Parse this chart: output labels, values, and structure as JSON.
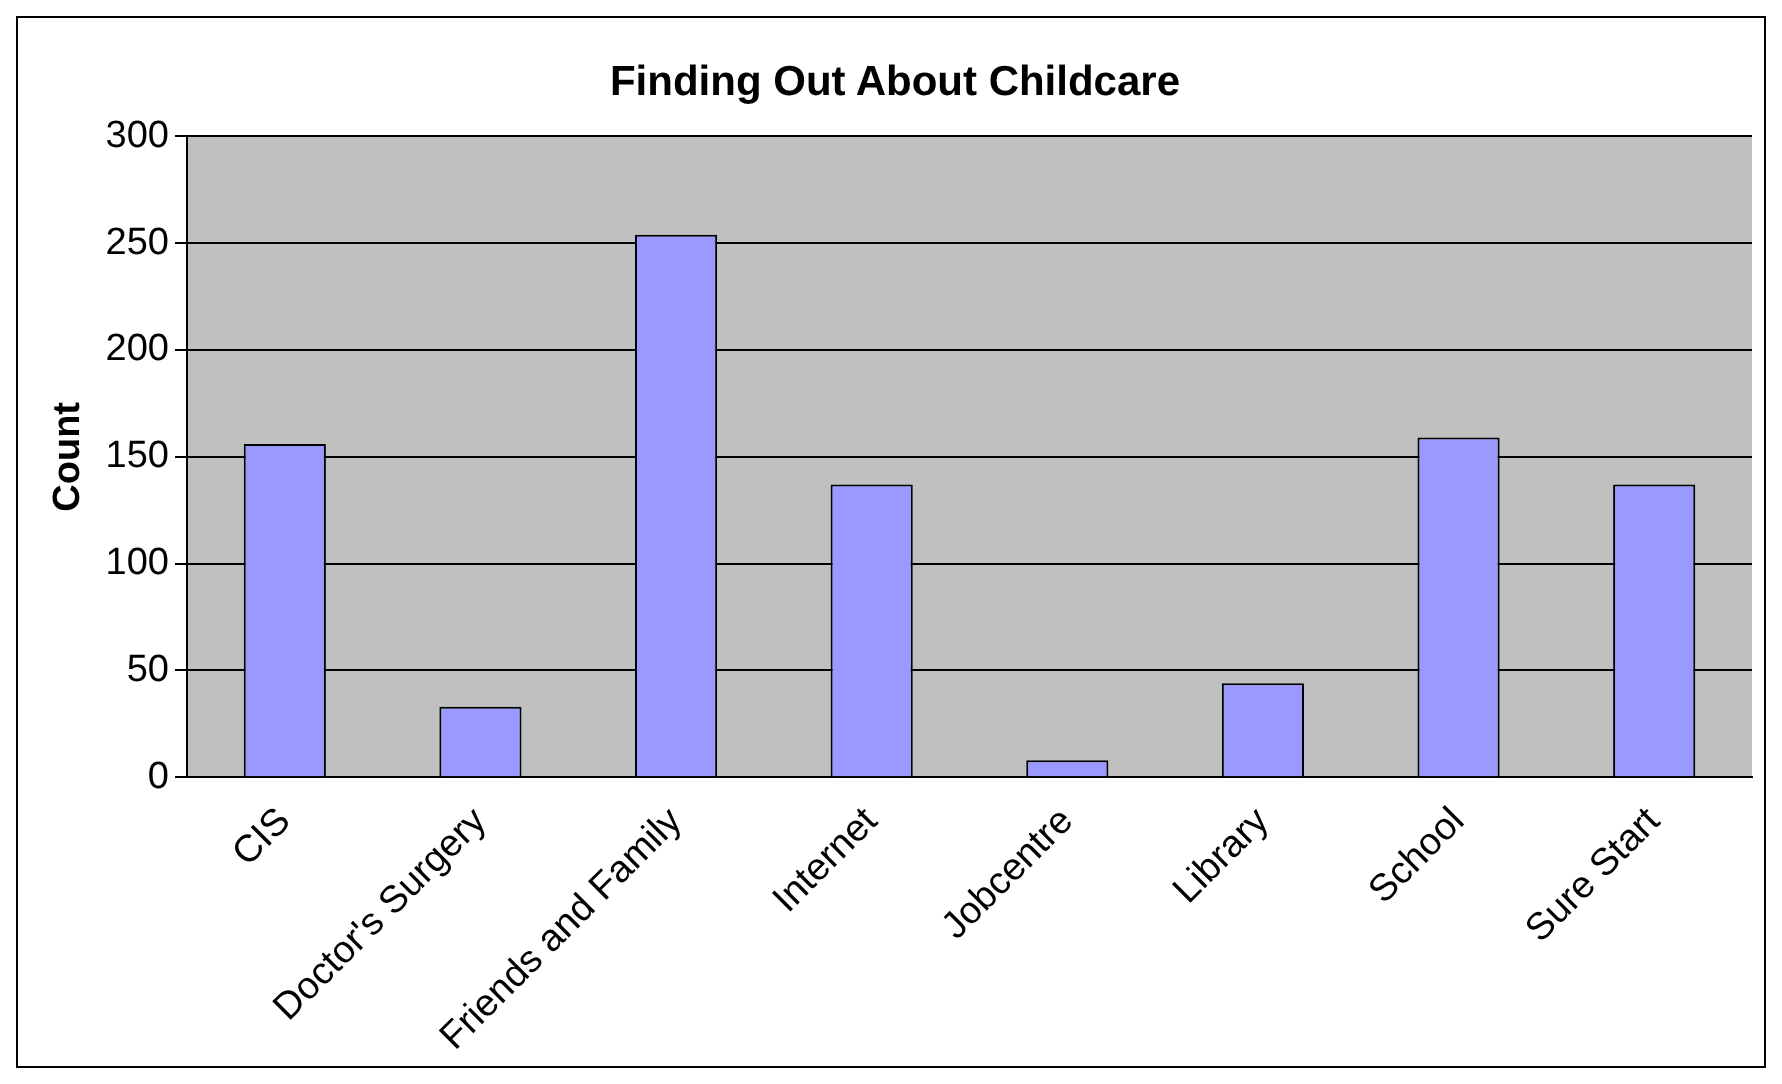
{
  "chart_data": {
    "type": "bar",
    "title": "Finding Out About Childcare",
    "ylabel": "Count",
    "categories": [
      "CIS",
      "Doctor's Surgery",
      "Friends and Family",
      "Internet",
      "Jobcentre",
      "Library",
      "School",
      "Sure Start"
    ],
    "values": [
      156,
      33,
      254,
      137,
      8,
      44,
      159,
      137
    ],
    "color": "#9999ff",
    "ylim": [
      0,
      300
    ],
    "yticks": [
      0,
      50,
      100,
      150,
      200,
      250,
      300
    ],
    "grid": "y",
    "legend": false
  }
}
